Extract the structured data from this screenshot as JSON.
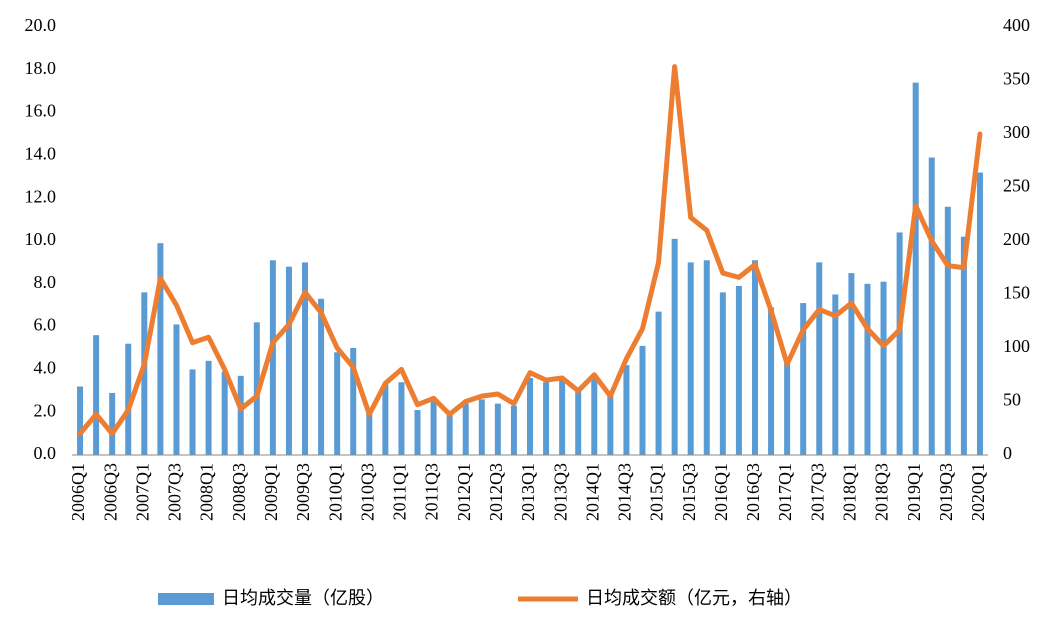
{
  "chart_data": {
    "type": "bar_line_dual_axis",
    "categories": [
      "2006Q1",
      null,
      "2006Q3",
      null,
      "2007Q1",
      null,
      "2007Q3",
      null,
      "2008Q1",
      null,
      "2008Q3",
      null,
      "2009Q1",
      null,
      "2009Q3",
      null,
      "2010Q1",
      null,
      "2010Q3",
      null,
      "2011Q1",
      null,
      "2011Q3",
      null,
      "2012Q1",
      null,
      "2012Q3",
      null,
      "2013Q1",
      null,
      "2013Q3",
      null,
      "2014Q1",
      null,
      "2014Q3",
      null,
      "2015Q1",
      null,
      "2015Q3",
      null,
      "2016Q1",
      null,
      "2016Q3",
      null,
      "2017Q1",
      null,
      "2017Q3",
      null,
      "2018Q1",
      null,
      "2018Q3",
      null,
      "2019Q1",
      null,
      "2019Q3",
      null,
      "2020Q1"
    ],
    "series": [
      {
        "name": "日均成交量（亿股）",
        "color": "#5b9bd5",
        "type": "bar",
        "values": [
          3.2,
          5.6,
          2.9,
          5.2,
          7.6,
          9.9,
          6.1,
          4.0,
          4.4,
          3.9,
          3.7,
          6.2,
          9.1,
          8.8,
          9.0,
          7.3,
          4.8,
          5.0,
          2.0,
          3.3,
          3.4,
          2.1,
          2.6,
          2.0,
          2.4,
          2.6,
          2.4,
          2.3,
          3.6,
          3.4,
          3.5,
          3.0,
          3.6,
          2.8,
          4.2,
          5.1,
          6.7,
          10.1,
          9.0,
          9.1,
          7.6,
          7.9,
          9.1,
          6.9,
          4.5,
          7.1,
          9.0,
          7.5,
          8.5,
          8.0,
          8.1,
          10.4,
          17.4,
          13.9,
          11.6,
          10.2,
          13.2
        ]
      },
      {
        "name": "日均成交额（亿元，右轴）",
        "color": "#ed7d31",
        "type": "line",
        "axis": "y2",
        "values": [
          20,
          38,
          20,
          42,
          85,
          165,
          140,
          105,
          110,
          80,
          43,
          55,
          105,
          122,
          152,
          133,
          100,
          82,
          38,
          67,
          80,
          47,
          53,
          38,
          50,
          55,
          57,
          48,
          77,
          70,
          72,
          60,
          75,
          55,
          90,
          118,
          180,
          363,
          222,
          210,
          170,
          166,
          178,
          135,
          85,
          117,
          136,
          130,
          142,
          118,
          102,
          117,
          233,
          200,
          177,
          175,
          300
        ]
      }
    ],
    "ylim": [
      0,
      20
    ],
    "yticks": [
      {
        "value": 0,
        "label": "0.0"
      },
      {
        "value": 2,
        "label": "2.0"
      },
      {
        "value": 4,
        "label": "4.0"
      },
      {
        "value": 6,
        "label": "6.0"
      },
      {
        "value": 8,
        "label": "8.0"
      },
      {
        "value": 10,
        "label": "10.0"
      },
      {
        "value": 12,
        "label": "12.0"
      },
      {
        "value": 14,
        "label": "14.0"
      },
      {
        "value": 16,
        "label": "16.0"
      },
      {
        "value": 18,
        "label": "18.0"
      },
      {
        "value": 20,
        "label": "20.0"
      }
    ],
    "y2lim": [
      0,
      400
    ],
    "y2ticks": [
      0,
      50,
      100,
      150,
      200,
      250,
      300,
      350,
      400
    ],
    "grid": false,
    "legend": "bottom"
  }
}
